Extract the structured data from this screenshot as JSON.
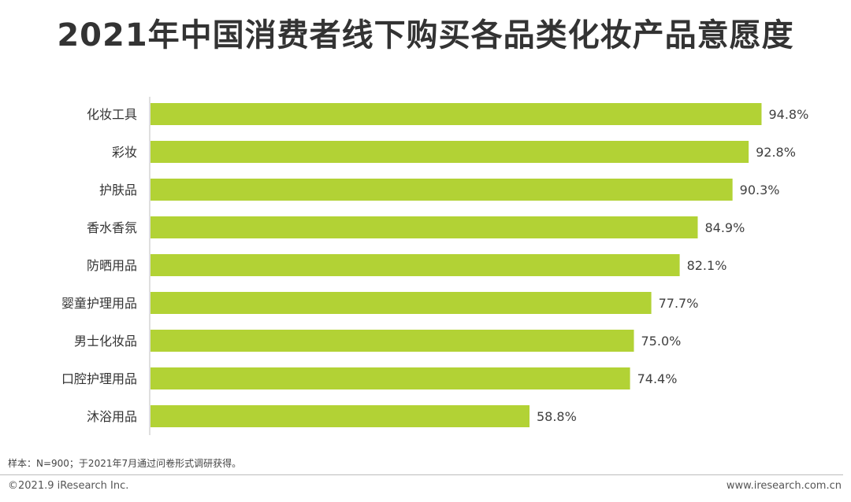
{
  "title": "2021年中国消费者线下购买各品类化妆产品意愿度",
  "chart_data": {
    "type": "bar",
    "orientation": "horizontal",
    "categories": [
      "化妆工具",
      "彩妆",
      "护肤品",
      "香水香氛",
      "防晒用品",
      "婴童护理用品",
      "男士化妆品",
      "口腔护理用品",
      "沐浴用品"
    ],
    "values": [
      94.8,
      92.8,
      90.3,
      84.9,
      82.1,
      77.7,
      75.0,
      74.4,
      58.8
    ],
    "value_labels": [
      "94.8%",
      "92.8%",
      "90.3%",
      "84.9%",
      "82.1%",
      "77.7%",
      "75.0%",
      "74.4%",
      "58.8%"
    ],
    "unit": "%",
    "xlim": [
      0,
      100
    ],
    "bar_color": "#b2d235",
    "grid": false,
    "legend": "none"
  },
  "footer": {
    "note": "样本：N=900；于2021年7月通过问卷形式调研获得。",
    "copyright": "©2021.9 iResearch Inc.",
    "website": "www.iresearch.com.cn"
  }
}
